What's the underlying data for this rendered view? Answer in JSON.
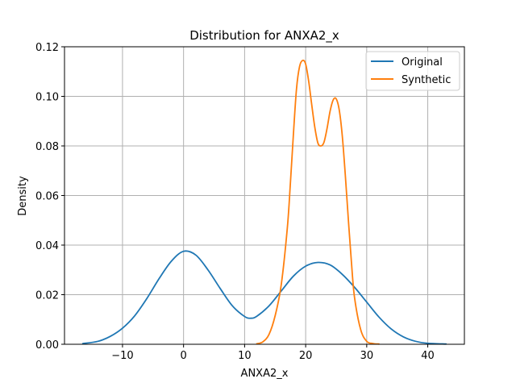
{
  "chart_data": {
    "type": "line",
    "title": "Distribution for ANXA2_x",
    "xlabel": "ANXA2_x",
    "ylabel": "Density",
    "xlim": [
      -19.5,
      46
    ],
    "ylim": [
      0,
      0.12
    ],
    "x_ticks": [
      -10,
      0,
      10,
      20,
      30,
      40
    ],
    "x_tick_labels": [
      "−10",
      "0",
      "10",
      "20",
      "30",
      "40"
    ],
    "y_ticks": [
      0.0,
      0.02,
      0.04,
      0.06,
      0.08,
      0.1,
      0.12
    ],
    "y_tick_labels": [
      "0.00",
      "0.02",
      "0.04",
      "0.06",
      "0.08",
      "0.10",
      "0.12"
    ],
    "grid": true,
    "legend_position": "top-right",
    "series": [
      {
        "name": "Original",
        "color": "#1f77b4",
        "x": [
          -16.5,
          -14,
          -12,
          -10,
          -8,
          -6,
          -4,
          -2,
          0,
          2,
          4,
          6,
          8,
          10,
          11,
          12,
          14,
          16,
          18,
          20,
          22,
          24,
          26,
          28,
          30,
          32,
          34,
          36,
          38,
          40,
          43
        ],
        "y": [
          0.0003,
          0.0012,
          0.0032,
          0.0065,
          0.0115,
          0.0185,
          0.0265,
          0.0335,
          0.0375,
          0.036,
          0.03,
          0.0225,
          0.0155,
          0.0112,
          0.0105,
          0.0113,
          0.0155,
          0.0215,
          0.0275,
          0.0315,
          0.033,
          0.032,
          0.0282,
          0.023,
          0.017,
          0.011,
          0.0062,
          0.003,
          0.0012,
          0.0004,
          0.0001
        ]
      },
      {
        "name": "Synthetic",
        "color": "#ff7f0e",
        "x": [
          12,
          13,
          14,
          15,
          16,
          17,
          17.5,
          18,
          18.5,
          19,
          19.5,
          20,
          20.5,
          21,
          21.5,
          22,
          22.5,
          23,
          23.5,
          24,
          24.5,
          25,
          25.5,
          26,
          26.5,
          27,
          27.5,
          28,
          29,
          30,
          31,
          32
        ],
        "y": [
          0.0002,
          0.001,
          0.004,
          0.0115,
          0.024,
          0.047,
          0.065,
          0.085,
          0.103,
          0.112,
          0.1145,
          0.113,
          0.106,
          0.0965,
          0.0875,
          0.0812,
          0.08,
          0.0815,
          0.087,
          0.094,
          0.0985,
          0.099,
          0.0945,
          0.084,
          0.068,
          0.05,
          0.033,
          0.019,
          0.006,
          0.0012,
          0.0003,
          0.0001
        ]
      }
    ]
  }
}
